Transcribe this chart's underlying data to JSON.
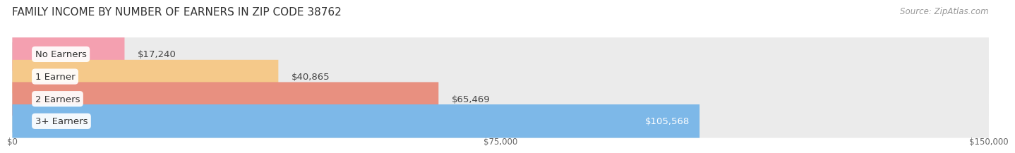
{
  "title": "FAMILY INCOME BY NUMBER OF EARNERS IN ZIP CODE 38762",
  "source": "Source: ZipAtlas.com",
  "categories": [
    "No Earners",
    "1 Earner",
    "2 Earners",
    "3+ Earners"
  ],
  "values": [
    17240,
    40865,
    65469,
    105568
  ],
  "bar_colors": [
    "#f4a0b0",
    "#f5c98a",
    "#e89080",
    "#7db8e8"
  ],
  "bar_bg_color": "#ebebeb",
  "value_labels": [
    "$17,240",
    "$40,865",
    "$65,469",
    "$105,568"
  ],
  "xmax": 150000,
  "xticks": [
    0,
    75000,
    150000
  ],
  "xtick_labels": [
    "$0",
    "$75,000",
    "$150,000"
  ],
  "title_fontsize": 11,
  "source_fontsize": 8.5,
  "label_fontsize": 9.5,
  "value_fontsize": 9.5
}
